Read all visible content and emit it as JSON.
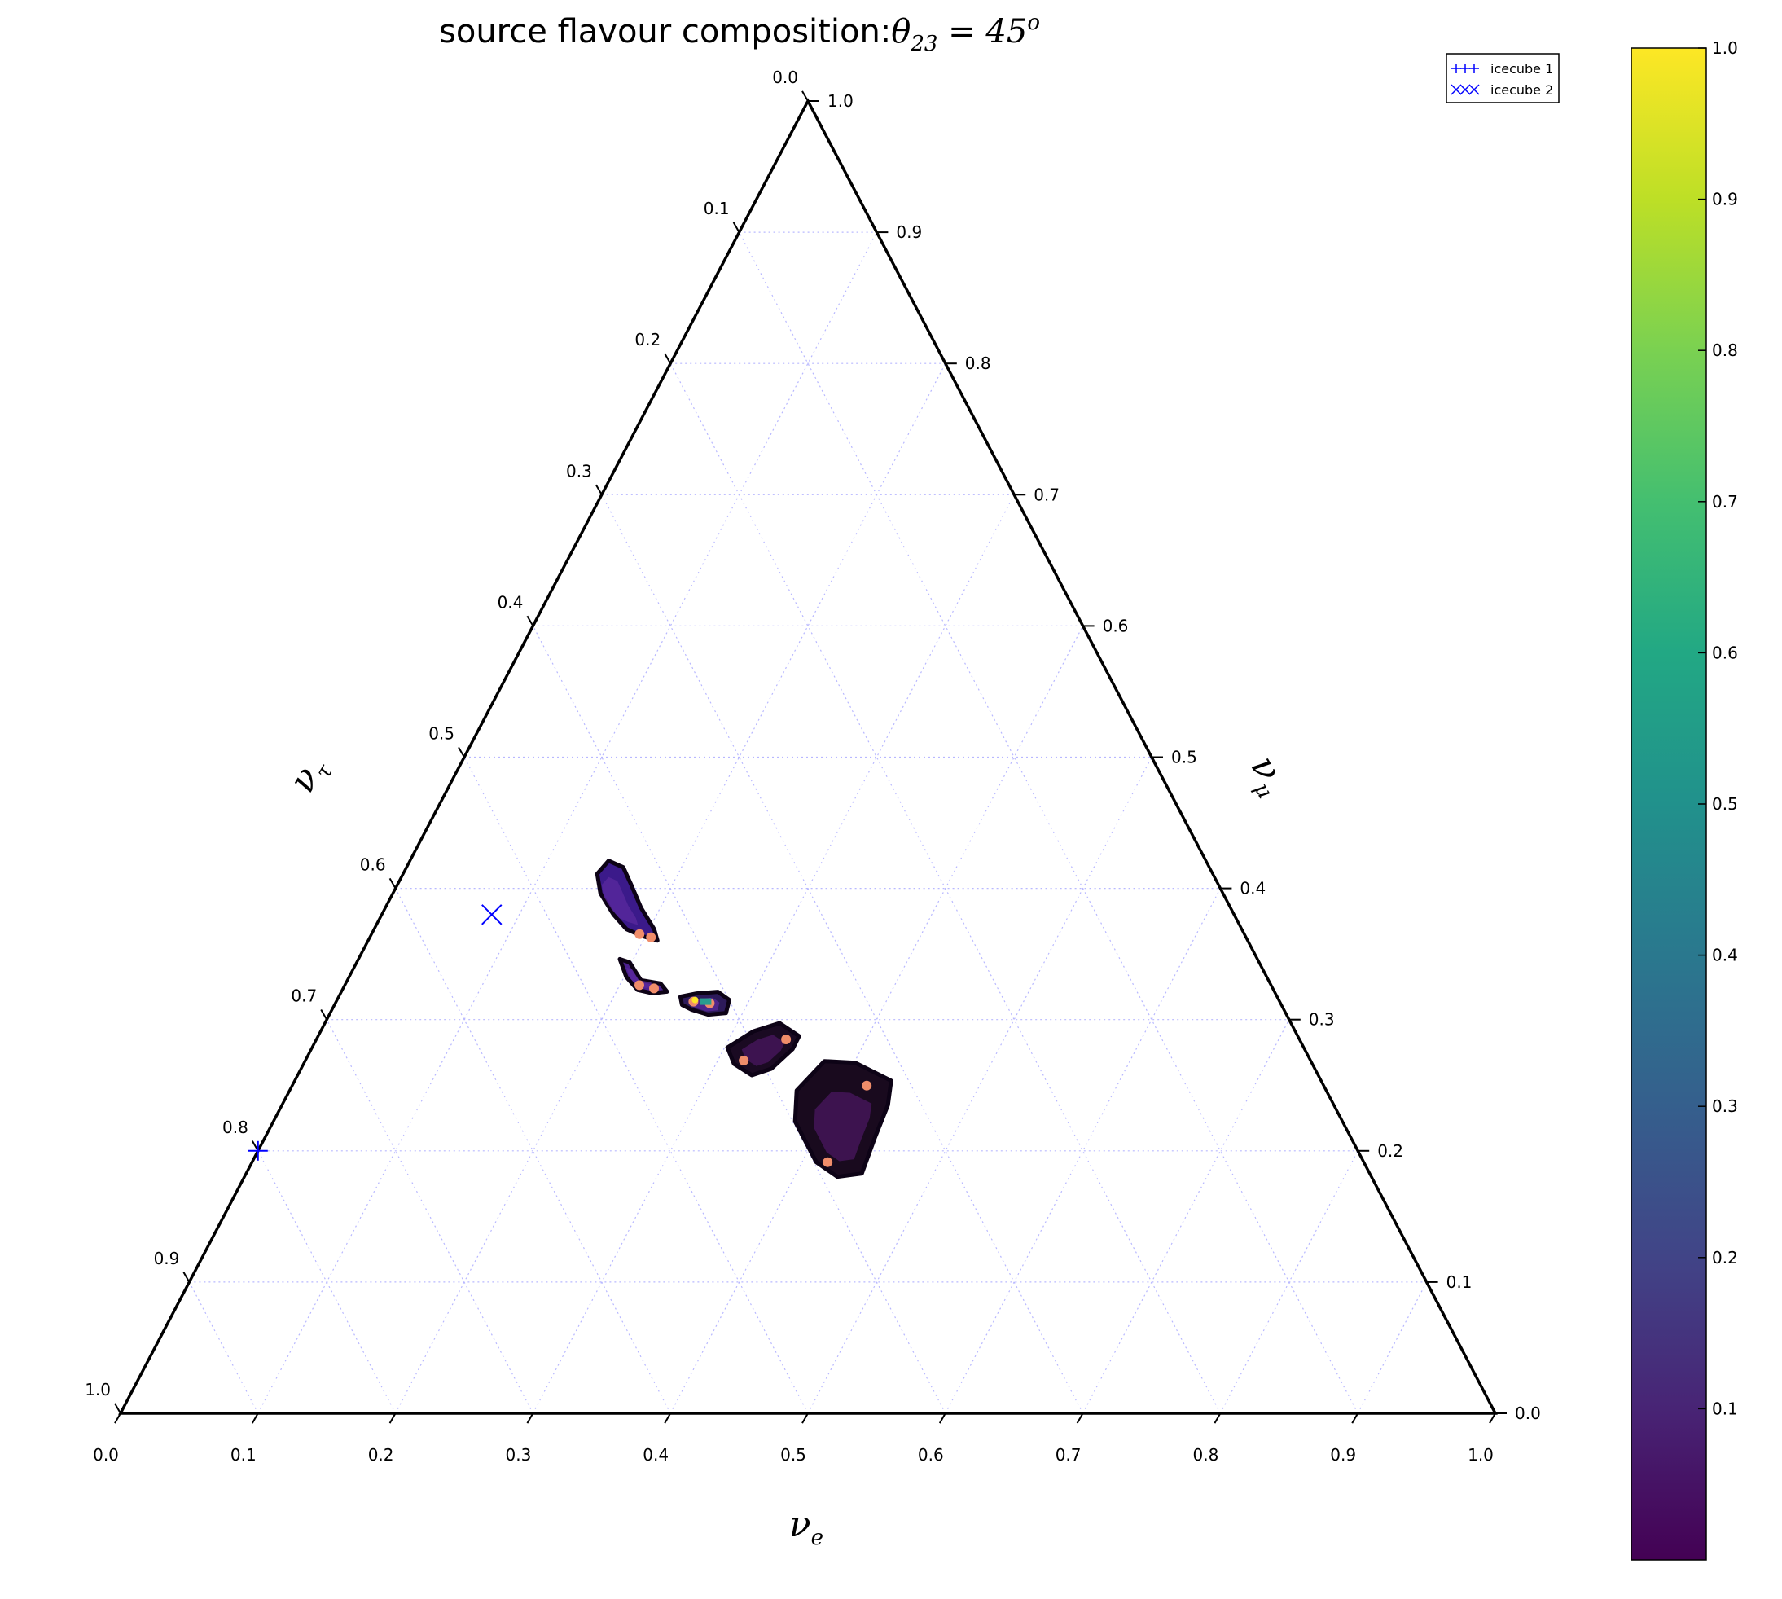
{
  "chart_data": {
    "type": "ternary-heatmap",
    "title": {
      "prefix": "source flavour composition:",
      "theta": "θ",
      "theta_sub": "23",
      "equals": " = 45",
      "degree_sup": "o"
    },
    "axes": {
      "nu_e": {
        "symbol": "ν",
        "subscript": "e"
      },
      "nu_mu": {
        "symbol": "ν",
        "subscript": "μ"
      },
      "nu_tau": {
        "symbol": "ν",
        "subscript": "τ"
      }
    },
    "bottom_ticks": [
      "0.0",
      "0.1",
      "0.2",
      "0.3",
      "0.4",
      "0.5",
      "0.6",
      "0.7",
      "0.8",
      "0.9",
      "1.0"
    ],
    "right_ticks": [
      "0.0",
      "0.1",
      "0.2",
      "0.3",
      "0.4",
      "0.5",
      "0.6",
      "0.7",
      "0.8",
      "0.9",
      "1.0"
    ],
    "left_ticks": [
      "0.0",
      "0.1",
      "0.2",
      "0.3",
      "0.4",
      "0.5",
      "0.6",
      "0.7",
      "0.8",
      "0.9",
      "1.0"
    ],
    "grid": true,
    "legend": {
      "placement": "top-right",
      "entries": [
        {
          "label": "icecube 1",
          "marker": "+",
          "color": "#0000ff"
        },
        {
          "label": "icecube 2",
          "marker": "x",
          "color": "#0000ff"
        }
      ]
    },
    "points": [
      {
        "series": "icecube 1",
        "nu_e": 0.0,
        "nu_mu": 0.2,
        "nu_tau": 0.8
      },
      {
        "series": "icecube 2",
        "nu_e": 0.08,
        "nu_mu": 0.38,
        "nu_tau": 0.54
      }
    ],
    "regions": [
      {
        "center": {
          "nu_e": 0.16,
          "nu_mu": 0.39,
          "nu_tau": 0.45
        },
        "max_value": 0.35
      },
      {
        "center": {
          "nu_e": 0.21,
          "nu_mu": 0.33,
          "nu_tau": 0.46
        },
        "max_value": 0.35
      },
      {
        "center": {
          "nu_e": 0.27,
          "nu_mu": 0.31,
          "nu_tau": 0.42
        },
        "max_value": 1.0
      },
      {
        "center": {
          "nu_e": 0.33,
          "nu_mu": 0.275,
          "nu_tau": 0.395
        },
        "max_value": 0.3
      },
      {
        "center": {
          "nu_e": 0.42,
          "nu_mu": 0.21,
          "nu_tau": 0.37
        },
        "max_value": 0.3
      }
    ],
    "colorbar": {
      "ticks": [
        "0.1",
        "0.2",
        "0.3",
        "0.4",
        "0.5",
        "0.6",
        "0.7",
        "0.8",
        "0.9",
        "1.0"
      ],
      "range": [
        0.0,
        1.0
      ],
      "colormap": "viridis"
    },
    "colors": {
      "frame": "#000000",
      "grid": "#b8b8ff",
      "marker": "#0000ff"
    }
  }
}
